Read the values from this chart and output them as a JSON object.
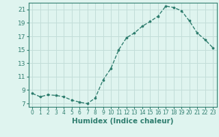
{
  "x": [
    0,
    1,
    2,
    3,
    4,
    5,
    6,
    7,
    8,
    9,
    10,
    11,
    12,
    13,
    14,
    15,
    16,
    17,
    18,
    19,
    20,
    21,
    22,
    23
  ],
  "y": [
    8.5,
    8.0,
    8.3,
    8.2,
    8.0,
    7.5,
    7.2,
    7.0,
    7.8,
    10.5,
    12.2,
    15.0,
    16.8,
    17.5,
    18.5,
    19.2,
    20.0,
    21.5,
    21.3,
    20.8,
    19.3,
    17.5,
    16.5,
    15.3
  ],
  "xlabel": "Humidex (Indice chaleur)",
  "ylim": [
    6.5,
    22.0
  ],
  "xlim": [
    -0.5,
    23.5
  ],
  "yticks": [
    7,
    9,
    11,
    13,
    15,
    17,
    19,
    21
  ],
  "xticks": [
    0,
    1,
    2,
    3,
    4,
    5,
    6,
    7,
    8,
    9,
    10,
    11,
    12,
    13,
    14,
    15,
    16,
    17,
    18,
    19,
    20,
    21,
    22,
    23
  ],
  "line_color": "#2e7d6e",
  "marker_color": "#2e7d6e",
  "bg_color": "#dff4ef",
  "grid_color": "#c2ddd8",
  "xlabel_fontsize": 7.5,
  "tick_fontsize_x": 5.5,
  "tick_fontsize_y": 6.5
}
